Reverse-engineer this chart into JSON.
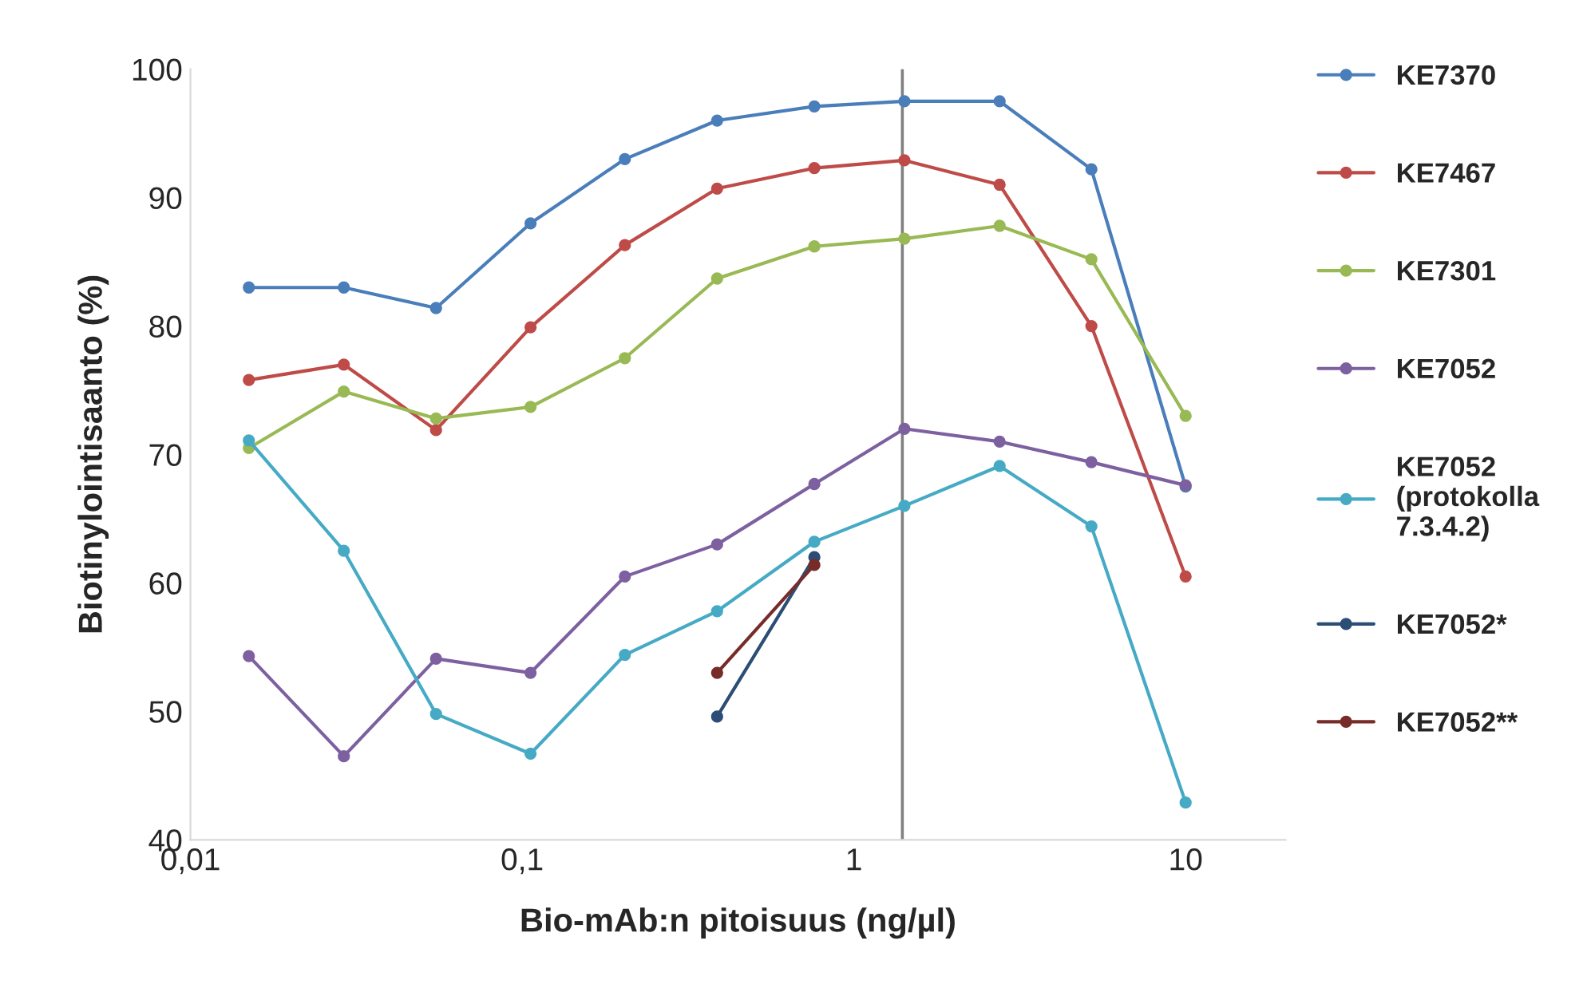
{
  "chart_data": {
    "type": "line",
    "xlabel": "Bio-mAb:n pitoisuus (ng/µl)",
    "ylabel": "Biotinylointisaanto (%)",
    "log": "x",
    "xlim": [
      0.01,
      20
    ],
    "xticks": [
      {
        "value": 0.01,
        "label": "0,01"
      },
      {
        "value": 0.1,
        "label": "0,1"
      },
      1,
      10
    ],
    "ylim": [
      40,
      100
    ],
    "yticks": [
      40,
      50,
      60,
      70,
      80,
      90,
      100
    ],
    "grid": false,
    "legend": "right",
    "marker": "circle",
    "line_style": "solid",
    "x": [
      0.015,
      0.029,
      0.055,
      0.106,
      0.204,
      0.387,
      0.76,
      1.42,
      2.75,
      5.2,
      10
    ],
    "series": [
      {
        "name": "KE7370",
        "color": "#4a7ebb",
        "values": [
          83.0,
          83.0,
          81.4,
          88.0,
          93.0,
          96.0,
          97.1,
          97.5,
          97.5,
          92.2,
          67.5
        ]
      },
      {
        "name": "KE7467",
        "color": "#be4b48",
        "values": [
          75.8,
          77.0,
          71.9,
          79.9,
          86.3,
          90.7,
          92.3,
          92.9,
          91.0,
          80.0,
          60.5
        ]
      },
      {
        "name": "KE7301",
        "color": "#98b954",
        "values": [
          70.5,
          74.9,
          72.8,
          73.7,
          77.5,
          83.7,
          86.2,
          86.8,
          87.8,
          85.2,
          73.0
        ]
      },
      {
        "name": "KE7052",
        "color": "#7d60a0",
        "values": [
          54.3,
          46.5,
          54.1,
          53.0,
          60.5,
          63.0,
          67.7,
          72.0,
          71.0,
          69.4,
          67.6
        ]
      },
      {
        "name": "KE7052\n(protokolla\n7.3.4.2)",
        "color": "#46aac5",
        "values": [
          71.1,
          62.5,
          49.8,
          46.7,
          54.4,
          57.8,
          63.2,
          66.0,
          69.1,
          64.4,
          42.9
        ]
      },
      {
        "name": "KE7052*",
        "color": "#2c4d75",
        "values": [
          null,
          null,
          null,
          null,
          null,
          49.6,
          62.0,
          null,
          null,
          null,
          null
        ]
      },
      {
        "name": "KE7052**",
        "color": "#772c2a",
        "values": [
          null,
          null,
          null,
          null,
          null,
          53.0,
          61.4,
          null,
          null,
          null,
          null
        ]
      }
    ],
    "ref_lines": [
      {
        "axis": "x",
        "value": 1.4,
        "color": "#808080"
      }
    ]
  }
}
